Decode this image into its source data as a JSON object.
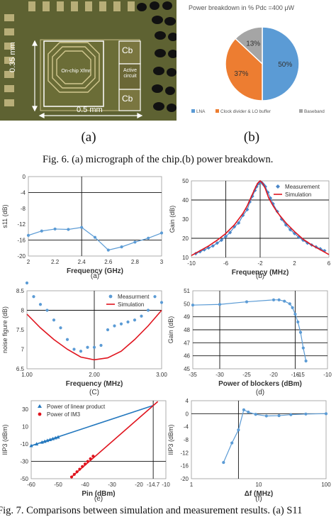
{
  "figure6": {
    "micrograph": {
      "labels": {
        "xfmr": "On-chip Xfmr",
        "active": "Active circuit",
        "cb_top": "Cb",
        "cb_bottom": "Cb",
        "dim_x": "0.5 mm",
        "dim_y": "0.35 mm"
      }
    },
    "pie": {
      "title": "Power breakdown in % Pdc =400 μW",
      "slices": [
        {
          "label": "LNA",
          "value": 50,
          "text": "50%",
          "color": "#5b9bd5"
        },
        {
          "label": "Clock divider & LO buffer",
          "value": 37,
          "text": "37%",
          "color": "#ed7d31"
        },
        {
          "label": "Baseband",
          "value": 13,
          "text": "13%",
          "color": "#a5a5a5"
        }
      ]
    },
    "letter_a": "(a)",
    "letter_b": "(b)",
    "caption": "Fig. 6.   (a) micrograph of the chip.(b) power breakdown."
  },
  "figure7": {
    "caption": "Fig. 7.   Comparisons between simulation and measurement results. (a) S11"
  },
  "chart_data": [
    {
      "id": "a",
      "type": "line",
      "panel_label": "(a)",
      "xlabel": "Frequency (GHz)",
      "ylabel": "s11 (dB)",
      "xlim": [
        2,
        3
      ],
      "ylim": [
        -20,
        0
      ],
      "xticks": [
        "2",
        "2.2",
        "2.4",
        "2.6",
        "2.8",
        "3"
      ],
      "yticks": [
        "0",
        "-4",
        "-8",
        "-12",
        "-16",
        "-20"
      ],
      "vlines": [
        2.4
      ],
      "hlines": [
        -4,
        -16
      ],
      "grid": false,
      "series": [
        {
          "x": [
            2.0,
            2.1,
            2.2,
            2.3,
            2.4,
            2.5,
            2.6,
            2.7,
            2.8,
            2.9,
            3.0
          ],
          "y": [
            -14.8,
            -13.7,
            -13.2,
            -13.3,
            -12.8,
            -15.3,
            -18.5,
            -17.7,
            -16.5,
            -15.5,
            -14.2
          ],
          "color": "#5b9bd5",
          "marker": "circle"
        }
      ]
    },
    {
      "id": "b",
      "type": "line",
      "panel_label": "(b)",
      "xlabel": "Frequency (MHz)",
      "ylabel": "Gain (dB)",
      "xlim": [
        -10,
        6
      ],
      "ylim": [
        10,
        50
      ],
      "xticks": [
        "-10",
        "-6",
        "-2",
        "2",
        "6"
      ],
      "yticks": [
        "50",
        "40",
        "30",
        "20",
        "10"
      ],
      "vlines": [
        -6,
        -2
      ],
      "hlines": [
        40,
        20
      ],
      "grid": false,
      "legend": "top-right",
      "series": [
        {
          "name": "Measurement",
          "color": "#4a86c8",
          "marker": "diamond",
          "x": [
            -9.5,
            -9,
            -8.5,
            -8,
            -7.5,
            -7,
            -6.5,
            -6,
            -5.5,
            -5,
            -4.5,
            -4,
            -3.5,
            -3.2,
            -2.9,
            -2.6,
            -2.4,
            -2.2,
            -2,
            -1.8,
            -1.6,
            -1.4,
            -1.1,
            -0.8,
            -0.5,
            0,
            0.5,
            1,
            1.5,
            2,
            2.5,
            3,
            3.5,
            4,
            4.5,
            5,
            5.5
          ],
          "y": [
            12,
            13,
            14,
            15,
            16,
            17.5,
            19,
            21,
            23,
            26,
            28,
            32,
            35,
            39,
            42,
            45,
            47,
            48.5,
            49.5,
            49,
            48,
            47,
            44,
            41,
            38,
            34,
            30,
            27,
            24.5,
            22.5,
            20.5,
            19,
            17.5,
            16.5,
            15.5,
            14.5,
            13.5
          ]
        },
        {
          "name": "Simulation",
          "color": "#e0141e",
          "marker": "none",
          "x": [
            -10,
            -9,
            -8,
            -7,
            -6,
            -5,
            -4,
            -3.5,
            -3,
            -2.6,
            -2.3,
            -2,
            -1.7,
            -1.4,
            -1,
            -0.5,
            0,
            1,
            2,
            3,
            4,
            5,
            6
          ],
          "y": [
            11,
            13.5,
            16,
            19,
            22.5,
            27,
            33,
            37,
            42,
            46,
            48.7,
            50,
            48.7,
            46,
            41,
            37,
            33.5,
            28,
            23.5,
            19.5,
            16.5,
            14,
            11.5
          ]
        }
      ]
    },
    {
      "id": "c",
      "type": "scatter",
      "panel_label": "(C)",
      "xlabel": "Frequency (MHz)",
      "ylabel": "noise figure (dB)",
      "xlim": [
        1,
        3
      ],
      "ylim": [
        6.5,
        8.5
      ],
      "xticks": [
        "1.00",
        "2.00",
        "3.00"
      ],
      "yticks": [
        "6.5",
        "7",
        "7.5",
        "8",
        "8.5"
      ],
      "vlines": [
        2.0
      ],
      "hlines": [
        8.0
      ],
      "grid": false,
      "legend": "top-right",
      "series": [
        {
          "name": "Measurment",
          "color": "#5b9bd5",
          "marker": "circle",
          "x": [
            1.0,
            1.1,
            1.2,
            1.3,
            1.4,
            1.5,
            1.6,
            1.7,
            1.8,
            1.9,
            2.0,
            2.1,
            2.2,
            2.3,
            2.4,
            2.5,
            2.6,
            2.7,
            2.8,
            2.9,
            3.0
          ],
          "y": [
            8.7,
            8.35,
            8.15,
            8.0,
            7.75,
            7.55,
            7.25,
            7.0,
            6.95,
            7.05,
            7.05,
            7.1,
            7.5,
            7.6,
            7.65,
            7.7,
            7.75,
            7.85,
            8.0,
            8.35,
            8.2
          ]
        },
        {
          "name": "Simulation",
          "color": "#e0141e",
          "marker": "none",
          "x": [
            1.0,
            1.2,
            1.4,
            1.6,
            1.8,
            2.0,
            2.2,
            2.4,
            2.6,
            2.8,
            3.0
          ],
          "y": [
            7.9,
            7.55,
            7.25,
            7.0,
            6.8,
            6.73,
            6.78,
            6.95,
            7.25,
            7.6,
            8.0
          ]
        }
      ]
    },
    {
      "id": "d",
      "type": "line",
      "panel_label": "(d)",
      "xlabel": "Power of blockers (dBm)",
      "ylabel": "Gain (dB)",
      "xlim": [
        -35,
        -10
      ],
      "ylim": [
        45,
        51
      ],
      "xticks": [
        "-35",
        "-30",
        "-25",
        "-20",
        "-16",
        "-15",
        "-10"
      ],
      "yticks": [
        "51",
        "50",
        "49",
        "48",
        "47",
        "46",
        "45"
      ],
      "vlines": [
        -30,
        -16
      ],
      "hlines": [
        49,
        48,
        47,
        46
      ],
      "grid": false,
      "series": [
        {
          "color": "#5b9bd5",
          "marker": "circle",
          "x": [
            -35,
            -30,
            -25,
            -20,
            -19,
            -18,
            -17,
            -16.5,
            -16,
            -15.5,
            -15,
            -14.5,
            -14
          ],
          "y": [
            49.9,
            49.95,
            50.15,
            50.3,
            50.3,
            50.2,
            50.0,
            49.7,
            49.2,
            48.6,
            47.8,
            46.6,
            45.6
          ]
        }
      ]
    },
    {
      "id": "e",
      "type": "line",
      "panel_label": "(e)",
      "xlabel": "Pin (dBm)",
      "ylabel": "IIP3 (dBm)",
      "xlim": [
        -60,
        -10
      ],
      "ylim": [
        -50,
        40
      ],
      "xticks": [
        "-60",
        "-50",
        "-40",
        "-30",
        "-20",
        "-14.7",
        "-10"
      ],
      "yticks": [
        "30",
        "10",
        "-10",
        "-30",
        "-50"
      ],
      "vlines": [
        -14.7
      ],
      "hlines": [
        -30
      ],
      "grid": false,
      "legend": "top-left",
      "series": [
        {
          "name": "Power of linear product",
          "color": "#2478be",
          "marker": "triangle",
          "x": [
            -60,
            -58,
            -56,
            -55,
            -54,
            -53,
            -52,
            -51,
            -50
          ],
          "y": [
            -12,
            -10,
            -8,
            -7,
            -6,
            -5,
            -4,
            -3,
            -2
          ],
          "fit_x": [
            -60,
            -14.7
          ],
          "fit_y": [
            -12,
            34.5
          ]
        },
        {
          "name": "Power of IM3",
          "color": "#e0141e",
          "marker": "circle",
          "x": [
            -45,
            -44,
            -43,
            -42,
            -41,
            -40,
            -39,
            -38,
            -37
          ],
          "y": [
            -48,
            -45,
            -42,
            -39,
            -36,
            -33,
            -30,
            -27,
            -24
          ],
          "fit_x": [
            -45,
            -13
          ],
          "fit_y": [
            -48,
            39
          ]
        }
      ]
    },
    {
      "id": "f",
      "type": "line",
      "panel_label": "(f)",
      "xlabel": "Δf (MHz)",
      "ylabel": "IIP3 (dBm)",
      "xscale": "log",
      "xlim": [
        1,
        100
      ],
      "ylim": [
        -20,
        4
      ],
      "xticks": [
        "1",
        "10",
        "100"
      ],
      "yticks": [
        "4",
        "0",
        "-4",
        "-8",
        "-12",
        "-16",
        "-20"
      ],
      "vlines": [
        5
      ],
      "hlines": [
        0
      ],
      "grid": false,
      "series": [
        {
          "color": "#5b9bd5",
          "marker": "circle",
          "x": [
            3,
            4,
            5,
            6,
            7,
            9,
            13,
            20,
            30,
            50,
            100
          ],
          "y": [
            -15,
            -9,
            -5,
            1.2,
            0.5,
            -0.2,
            -0.7,
            -0.6,
            -0.3,
            -0.1,
            0
          ]
        }
      ]
    }
  ]
}
